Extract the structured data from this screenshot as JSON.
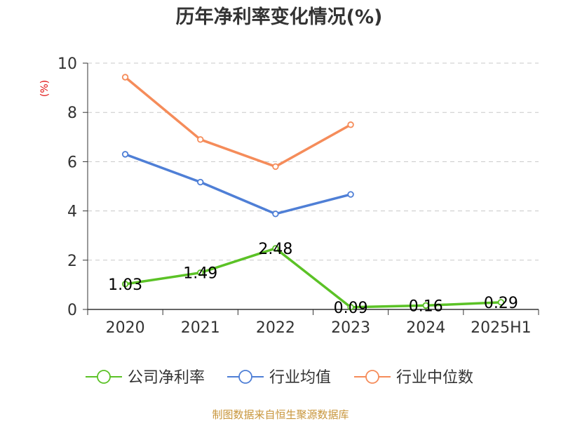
{
  "chart_data": {
    "type": "line",
    "title": "历年净利率变化情况(%)",
    "ylabel": "(%)",
    "xlabel": "",
    "categories": [
      "2020",
      "2021",
      "2022",
      "2023",
      "2024",
      "2025H1"
    ],
    "ylim": [
      0,
      10
    ],
    "yticks": [
      0,
      2,
      4,
      6,
      8,
      10
    ],
    "grid": true,
    "legend_position": "bottom",
    "series": [
      {
        "name": "公司净利率",
        "color": "#5bc226",
        "values": [
          1.03,
          1.49,
          2.48,
          0.09,
          0.16,
          0.29
        ],
        "labels": [
          "1.03",
          "1.49",
          "2.48",
          "0.09",
          "0.16",
          "0.29"
        ]
      },
      {
        "name": "行业均值",
        "color": "#4f7fd6",
        "values": [
          6.3,
          5.17,
          3.88,
          4.67,
          null,
          null
        ]
      },
      {
        "name": "行业中位数",
        "color": "#f58c5a",
        "values": [
          9.43,
          6.9,
          5.8,
          7.5,
          null,
          null
        ]
      }
    ]
  },
  "source": "制图数据来自恒生聚源数据库"
}
